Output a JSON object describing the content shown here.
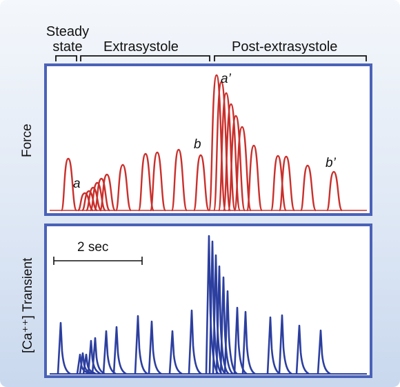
{
  "phases": {
    "steady_state": "Steady\nstate",
    "extrasystole": "Extrasystole",
    "post_extrasystole": "Post-extrasystole"
  },
  "force_panel": {
    "ylabel": "Force",
    "annotations": {
      "a": "a",
      "b": "b",
      "a_prime": "a’",
      "b_prime": "b’"
    },
    "color": "#c9302c"
  },
  "calcium_panel": {
    "ylabel": "[Ca⁺⁺] Transient",
    "scale_bar_label": "2 sec",
    "color": "#2c3f9f"
  },
  "frame_color": "#4a62b8"
}
